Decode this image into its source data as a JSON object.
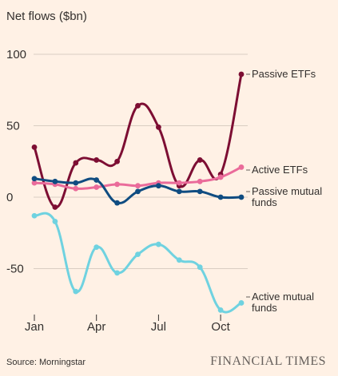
{
  "chart_data": {
    "type": "line",
    "title": "Net flows ($bn)",
    "xlabel": "",
    "ylabel": "",
    "x": [
      "Jan",
      "Feb",
      "Mar",
      "Apr",
      "May",
      "Jun",
      "Jul",
      "Aug",
      "Sep",
      "Oct",
      "Nov"
    ],
    "x_tick_labels": [
      "Jan",
      "Apr",
      "Jul",
      "Oct"
    ],
    "x_tick_indices": [
      0,
      3,
      6,
      9
    ],
    "y_ticks": [
      100,
      50,
      0,
      -50
    ],
    "y_tick_labels": [
      "100",
      "50",
      "0",
      "-50"
    ],
    "ylim": [
      -82,
      105
    ],
    "grid": "horizontal",
    "legend": "direct-labels-right",
    "series": [
      {
        "name": "Passive ETFs",
        "color": "#7d0e33",
        "values": [
          35,
          -7,
          24,
          26,
          25,
          64,
          49,
          8,
          26,
          16,
          86
        ]
      },
      {
        "name": "Active ETFs",
        "color": "#ea6b9a",
        "values": [
          10,
          9,
          6,
          7,
          9,
          8,
          10,
          10,
          11,
          14,
          21
        ]
      },
      {
        "name": "Passive mutual funds",
        "color": "#0f4c81",
        "values": [
          13,
          11,
          10,
          12,
          -4,
          4,
          8,
          4,
          4,
          0,
          0
        ]
      },
      {
        "name": "Active mutual funds",
        "color": "#6fd2e0",
        "values": [
          -13,
          -17,
          -66,
          -35,
          -53,
          -40,
          -33,
          -44,
          -49,
          -79,
          -74
        ]
      }
    ],
    "series_labels": [
      [
        "Passive ETFs"
      ],
      [
        "Active ETFs"
      ],
      [
        "Passive mutual",
        "funds"
      ],
      [
        "Active mutual",
        "funds"
      ]
    ],
    "source": "Source: Morningstar",
    "brand": "FINANCIAL TIMES"
  }
}
